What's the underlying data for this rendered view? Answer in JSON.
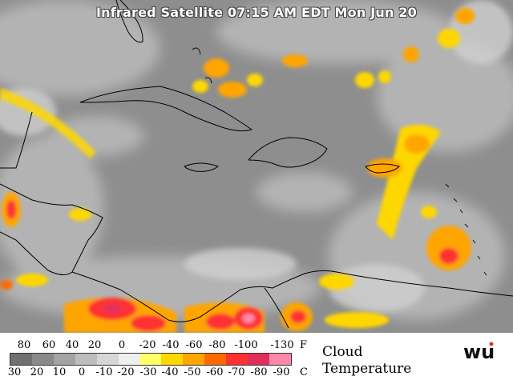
{
  "title": "Infrared Satellite 07:15 AM EDT Mon Jun 20",
  "legend": {
    "fahrenheit_labels": [
      "80",
      "60",
      "40",
      "20",
      "0",
      "-20",
      "-40",
      "-60",
      "-80",
      "-100",
      "-130"
    ],
    "fahrenheit_unit": "F",
    "celsius_labels": [
      "30",
      "20",
      "10",
      "0",
      "-10",
      "-20",
      "-30",
      "-40",
      "-50",
      "-60",
      "-70",
      "-80",
      "-90"
    ],
    "celsius_unit": "C",
    "colors": [
      "#707070",
      "#8a8a8a",
      "#a3a3a3",
      "#bdbdbd",
      "#d6d6d6",
      "#efefef",
      "#ffff66",
      "#ffd700",
      "#ffa500",
      "#ff6a00",
      "#ff3030",
      "#e0305a",
      "#ff88aa"
    ],
    "caption_line1": "Cloud",
    "caption_line2": "Temperature"
  },
  "logo": {
    "text": "wu",
    "name": "wunderground-logo"
  }
}
